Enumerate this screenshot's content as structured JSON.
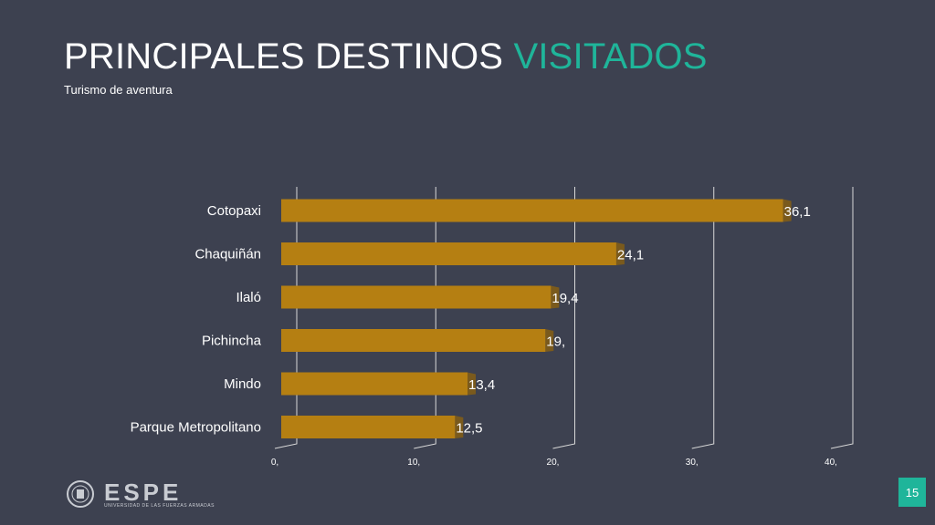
{
  "slide": {
    "title_main": "PRINCIPALES DESTINOS ",
    "title_accent": "VISITADOS",
    "subtitle": "Turismo de aventura",
    "page_number": "15",
    "logo_text": "ESPE",
    "logo_subtext": "UNIVERSIDAD DE LAS FUERZAS ARMADAS",
    "accent_color": "#1fb59a",
    "background_color": "#3d4150"
  },
  "chart_data": {
    "type": "bar",
    "orientation": "horizontal",
    "categories": [
      "Cotopaxi",
      "Chaquiñán",
      "Ilaló",
      "Pichincha",
      "Mindo",
      "Parque Metropolitano"
    ],
    "values": [
      36.1,
      24.1,
      19.4,
      19.0,
      13.4,
      12.5
    ],
    "value_labels": [
      "36,1",
      "24,1",
      "19,4",
      "19,",
      "13,4",
      "12,5"
    ],
    "x_ticks": [
      0,
      10,
      20,
      30,
      40
    ],
    "x_tick_labels": [
      "0,",
      "10,",
      "20,",
      "30,",
      "40,"
    ],
    "xlim": [
      0,
      40
    ],
    "bar_color": "#b57f12",
    "bar_shadow_color": "#7a5a1d",
    "grid": true
  }
}
